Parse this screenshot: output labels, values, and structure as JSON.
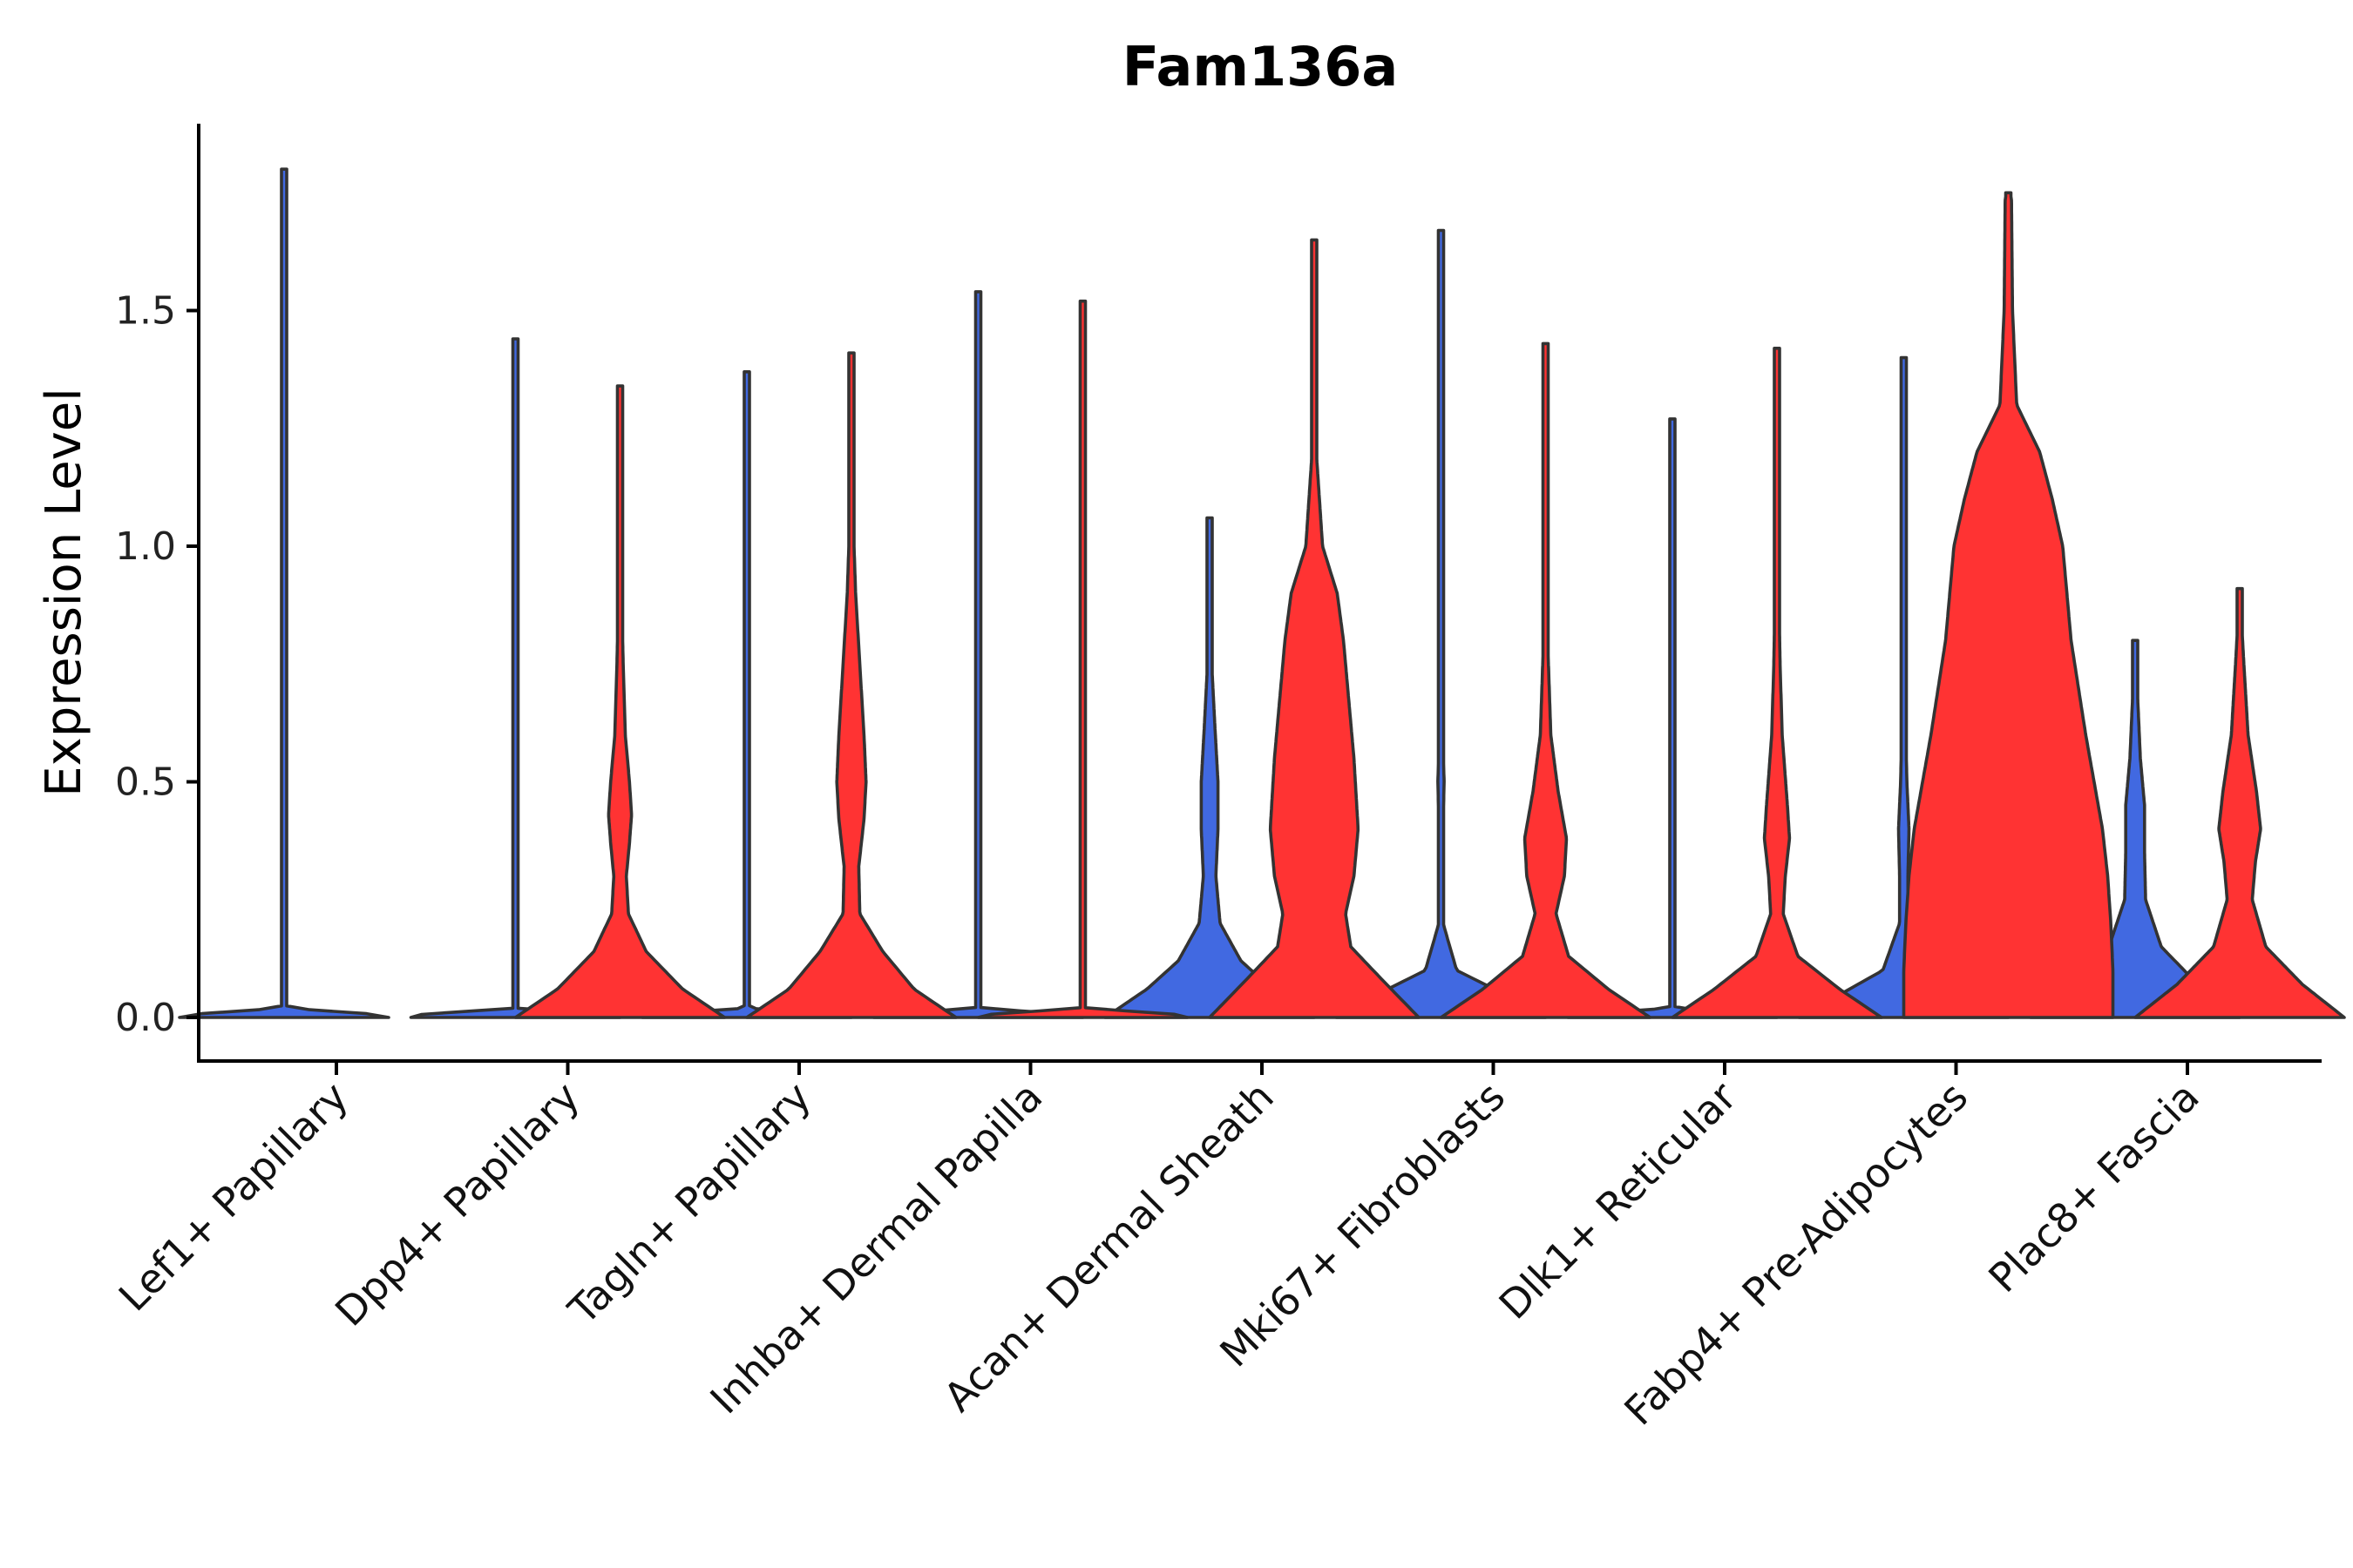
{
  "chart_data": {
    "type": "violin",
    "title": "Fam136a",
    "xlabel": "",
    "ylabel": "Expression Level",
    "ylim": [
      -0.09,
      1.9
    ],
    "yticks": [
      0.0,
      0.5,
      1.0,
      1.5
    ],
    "ytick_labels": [
      "0.0",
      "0.5",
      "1.0",
      "1.5"
    ],
    "grid": false,
    "legend": "none",
    "colors": {
      "group_a": "#4169E1",
      "group_b": "#FF3333",
      "outline": "#333333"
    },
    "categories": [
      "Lef1+ Papillary",
      "Dpp4+ Papillary",
      "Tagln+ Papillary",
      "Inhba+ Dermal Papilla",
      "Acan+ Dermal Sheath",
      "Mki67+ Fibroblasts",
      "Dlk1+ Reticular",
      "Fabp4+ Pre-Adipocytes",
      "Plac8+ Fascia"
    ],
    "series": [
      {
        "name": "group_a",
        "color": "#4169E1",
        "max_values": [
          1.8,
          1.44,
          1.37,
          1.54,
          1.06,
          1.67,
          1.27,
          1.4,
          0.8
        ],
        "density_profiles": [
          [
            [
              0,
              1
            ],
            [
              0.005,
              1
            ],
            [
              0.02,
              0
            ],
            [
              1.8,
              0
            ]
          ],
          [
            [
              0,
              1
            ],
            [
              0.005,
              1
            ],
            [
              0.02,
              0
            ],
            [
              1.44,
              0
            ]
          ],
          [
            [
              0,
              1
            ],
            [
              0.005,
              1
            ],
            [
              0.02,
              0
            ],
            [
              1.37,
              0
            ]
          ],
          [
            [
              0,
              1
            ],
            [
              0.005,
              1
            ],
            [
              0.02,
              0
            ],
            [
              1.54,
              0
            ]
          ],
          [
            [
              0,
              1
            ],
            [
              0.06,
              0.6
            ],
            [
              0.12,
              0.3
            ],
            [
              0.2,
              0.1
            ],
            [
              0.3,
              0.06
            ],
            [
              0.4,
              0.08
            ],
            [
              0.5,
              0.08
            ],
            [
              0.62,
              0.05
            ],
            [
              0.75,
              0.02
            ],
            [
              0.9,
              0.01
            ],
            [
              1.06,
              0
            ]
          ],
          [
            [
              0,
              1
            ],
            [
              0.05,
              0.6
            ],
            [
              0.1,
              0.15
            ],
            [
              0.2,
              0.02
            ],
            [
              0.4,
              0.02
            ],
            [
              0.5,
              0.03
            ],
            [
              0.65,
              0.01
            ],
            [
              0.8,
              0.005
            ],
            [
              1.67,
              0
            ]
          ],
          [
            [
              0,
              1
            ],
            [
              0.005,
              1
            ],
            [
              0.02,
              0
            ],
            [
              1.27,
              0
            ]
          ],
          [
            [
              0,
              1
            ],
            [
              0.05,
              0.6
            ],
            [
              0.1,
              0.2
            ],
            [
              0.2,
              0.04
            ],
            [
              0.3,
              0.04
            ],
            [
              0.4,
              0.05
            ],
            [
              0.5,
              0.03
            ],
            [
              0.7,
              0.01
            ],
            [
              0.9,
              0.005
            ],
            [
              1.4,
              0
            ]
          ],
          [
            [
              0,
              1
            ],
            [
              0.07,
              0.6
            ],
            [
              0.15,
              0.25
            ],
            [
              0.25,
              0.1
            ],
            [
              0.35,
              0.09
            ],
            [
              0.45,
              0.09
            ],
            [
              0.55,
              0.05
            ],
            [
              0.65,
              0.03
            ],
            [
              0.8,
              0
            ]
          ]
        ]
      },
      {
        "name": "group_b",
        "color": "#FF3333",
        "max_values": [
          null,
          1.34,
          1.41,
          1.52,
          1.65,
          1.43,
          1.42,
          1.75,
          0.91
        ],
        "density_profiles": [
          null,
          [
            [
              0,
              1
            ],
            [
              0.06,
              0.6
            ],
            [
              0.14,
              0.25
            ],
            [
              0.22,
              0.08
            ],
            [
              0.3,
              0.06
            ],
            [
              0.37,
              0.09
            ],
            [
              0.43,
              0.11
            ],
            [
              0.5,
              0.09
            ],
            [
              0.6,
              0.05
            ],
            [
              0.75,
              0.03
            ],
            [
              0.9,
              0.015
            ],
            [
              1.1,
              0.005
            ],
            [
              1.34,
              0
            ]
          ],
          [
            [
              0,
              1
            ],
            [
              0.06,
              0.6
            ],
            [
              0.14,
              0.3
            ],
            [
              0.22,
              0.08
            ],
            [
              0.32,
              0.07
            ],
            [
              0.42,
              0.12
            ],
            [
              0.5,
              0.14
            ],
            [
              0.6,
              0.12
            ],
            [
              0.75,
              0.08
            ],
            [
              0.9,
              0.04
            ],
            [
              1.1,
              0.01
            ],
            [
              1.41,
              0
            ]
          ],
          [
            [
              0,
              1
            ],
            [
              0.005,
              1
            ],
            [
              0.02,
              0
            ],
            [
              1.52,
              0
            ]
          ],
          [
            [
              0,
              1
            ],
            [
              0.08,
              0.65
            ],
            [
              0.15,
              0.35
            ],
            [
              0.22,
              0.3
            ],
            [
              0.3,
              0.38
            ],
            [
              0.4,
              0.42
            ],
            [
              0.55,
              0.38
            ],
            [
              0.7,
              0.32
            ],
            [
              0.8,
              0.28
            ],
            [
              0.9,
              0.22
            ],
            [
              1.0,
              0.08
            ],
            [
              1.2,
              0.02
            ],
            [
              1.4,
              0.01
            ],
            [
              1.65,
              0
            ]
          ],
          [
            [
              0,
              1
            ],
            [
              0.06,
              0.6
            ],
            [
              0.13,
              0.22
            ],
            [
              0.22,
              0.1
            ],
            [
              0.3,
              0.18
            ],
            [
              0.38,
              0.2
            ],
            [
              0.48,
              0.12
            ],
            [
              0.6,
              0.05
            ],
            [
              0.8,
              0.02
            ],
            [
              1.0,
              0.01
            ],
            [
              1.43,
              0
            ]
          ],
          [
            [
              0,
              1
            ],
            [
              0.06,
              0.6
            ],
            [
              0.13,
              0.2
            ],
            [
              0.22,
              0.06
            ],
            [
              0.3,
              0.08
            ],
            [
              0.38,
              0.12
            ],
            [
              0.45,
              0.1
            ],
            [
              0.6,
              0.05
            ],
            [
              0.75,
              0.03
            ],
            [
              1.0,
              0.01
            ],
            [
              1.42,
              0
            ]
          ],
          [
            [
              0,
              1
            ],
            [
              0.1,
              1
            ],
            [
              0.2,
              0.98
            ],
            [
              0.3,
              0.95
            ],
            [
              0.4,
              0.9
            ],
            [
              0.5,
              0.82
            ],
            [
              0.6,
              0.74
            ],
            [
              0.7,
              0.67
            ],
            [
              0.8,
              0.6
            ],
            [
              0.9,
              0.56
            ],
            [
              1.0,
              0.52
            ],
            [
              1.1,
              0.42
            ],
            [
              1.2,
              0.3
            ],
            [
              1.3,
              0.08
            ],
            [
              1.5,
              0.04
            ],
            [
              1.74,
              0.03
            ],
            [
              1.75,
              0
            ]
          ],
          [
            [
              0,
              1
            ],
            [
              0.07,
              0.6
            ],
            [
              0.15,
              0.25
            ],
            [
              0.25,
              0.12
            ],
            [
              0.33,
              0.15
            ],
            [
              0.4,
              0.2
            ],
            [
              0.48,
              0.16
            ],
            [
              0.6,
              0.08
            ],
            [
              0.75,
              0.04
            ],
            [
              0.91,
              0
            ]
          ]
        ]
      }
    ]
  }
}
